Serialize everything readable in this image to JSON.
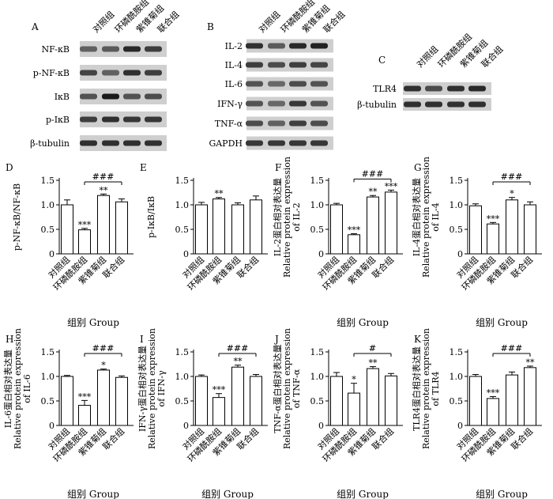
{
  "groups": [
    "对照组",
    "环磷酰胺组",
    "紫锥菊组",
    "联合组"
  ],
  "blots": [
    {
      "letter": "A",
      "rows": [
        "NF-κB",
        "p-NF-κB",
        "IκB",
        "p-IκB",
        "β-tubulin"
      ]
    },
    {
      "letter": "B",
      "rows": [
        "IL-2",
        "IL-4",
        "IL-6",
        "IFN-γ",
        "TNF-α",
        "GAPDH"
      ]
    },
    {
      "letter": "C",
      "rows": [
        "TLR4",
        "β-tubulin"
      ]
    }
  ],
  "chart_data": [
    {
      "letter": "D",
      "type": "bar",
      "ylabel": [
        "p-NF-κB/NF-κB"
      ],
      "xlabel": "组别  Group",
      "ylim": [
        0,
        1.5
      ],
      "yticks": [
        "0",
        "0.5",
        "1.0",
        "1.5"
      ],
      "values": [
        1.0,
        0.49,
        1.19,
        1.06
      ],
      "errors": [
        0.1,
        0.03,
        0.03,
        0.06
      ],
      "marks": [
        "",
        "***",
        "**",
        ""
      ],
      "bracket": {
        "from": 1,
        "to": 3,
        "label": "###"
      }
    },
    {
      "letter": "E",
      "type": "bar",
      "ylabel": [
        "p-IκB/IκB"
      ],
      "xlabel": "",
      "ylim": [
        0,
        1.5
      ],
      "yticks": [
        "0",
        "0.5",
        "1.0",
        "1.5"
      ],
      "values": [
        1.0,
        1.12,
        1.0,
        1.1
      ],
      "errors": [
        0.05,
        0.03,
        0.04,
        0.08
      ],
      "marks": [
        "",
        "**",
        "",
        ""
      ],
      "bracket": null
    },
    {
      "letter": "F",
      "type": "bar",
      "ylabel": [
        "IL-2蛋白相对表达量",
        "Relative protein expression",
        "of IL-2"
      ],
      "xlabel": "组别  Group",
      "ylim": [
        0,
        1.5
      ],
      "yticks": [
        "0",
        "0.5",
        "1.0",
        "1.5"
      ],
      "values": [
        1.0,
        0.39,
        1.16,
        1.26
      ],
      "errors": [
        0.03,
        0.02,
        0.03,
        0.04
      ],
      "marks": [
        "",
        "***",
        "**",
        "***"
      ],
      "bracket": {
        "from": 1,
        "to": 3,
        "label": "###"
      }
    },
    {
      "letter": "G",
      "type": "bar",
      "ylabel": [
        "IL-4蛋白相对表达量",
        "Relative protein expression",
        "of IL-4"
      ],
      "xlabel": "组别  Group",
      "ylim": [
        0,
        1.5
      ],
      "yticks": [
        "0",
        "0.5",
        "1.0",
        "1.5"
      ],
      "values": [
        0.98,
        0.61,
        1.1,
        1.0
      ],
      "errors": [
        0.04,
        0.03,
        0.05,
        0.06
      ],
      "marks": [
        "",
        "***",
        "*",
        ""
      ],
      "bracket": {
        "from": 1,
        "to": 3,
        "label": "###"
      }
    },
    {
      "letter": "H",
      "type": "bar",
      "ylabel": [
        "IL-6蛋白相对表达量",
        "Relative protein expression",
        "of IL-6"
      ],
      "xlabel": "组别  Group",
      "ylim": [
        0,
        1.5
      ],
      "yticks": [
        "0",
        "0.5",
        "1.0",
        "1.5"
      ],
      "values": [
        1.0,
        0.41,
        1.13,
        0.98
      ],
      "errors": [
        0.02,
        0.1,
        0.02,
        0.03
      ],
      "marks": [
        "",
        "***",
        "*",
        ""
      ],
      "bracket": {
        "from": 1,
        "to": 3,
        "label": "###"
      }
    },
    {
      "letter": "I",
      "type": "bar",
      "ylabel": [
        "IFN-γ蛋白相对表达量",
        "Relative protein expression",
        "of IFN-γ"
      ],
      "xlabel": "组别  Group",
      "ylim": [
        0,
        1.5
      ],
      "yticks": [
        "0",
        "0.5",
        "1.0",
        "1.5"
      ],
      "values": [
        1.0,
        0.57,
        1.19,
        1.0
      ],
      "errors": [
        0.03,
        0.08,
        0.04,
        0.04
      ],
      "marks": [
        "",
        "***",
        "**",
        ""
      ],
      "bracket": {
        "from": 1,
        "to": 3,
        "label": "###"
      }
    },
    {
      "letter": "J",
      "type": "bar",
      "ylabel": [
        "TNF-α蛋白相对表达量",
        "Relative protein expression",
        "of TNF-α"
      ],
      "xlabel": "组别  Group",
      "ylim": [
        0,
        1.5
      ],
      "yticks": [
        "0",
        "0.5",
        "1.0",
        "1.5"
      ],
      "values": [
        1.0,
        0.66,
        1.16,
        1.01
      ],
      "errors": [
        0.08,
        0.2,
        0.04,
        0.05
      ],
      "marks": [
        "",
        "*",
        "**",
        ""
      ],
      "bracket": {
        "from": 1,
        "to": 3,
        "label": "#"
      }
    },
    {
      "letter": "K",
      "type": "bar",
      "ylabel": [
        "TLR4蛋白相对表达量",
        "Relative protein expression",
        "of TLR4"
      ],
      "xlabel": "组别  Group",
      "ylim": [
        0,
        1.5
      ],
      "yticks": [
        "0",
        "0.5",
        "1.0",
        "1.5"
      ],
      "values": [
        1.0,
        0.55,
        1.03,
        1.18
      ],
      "errors": [
        0.04,
        0.04,
        0.06,
        0.03
      ],
      "marks": [
        "",
        "***",
        "",
        "**"
      ],
      "bracket": {
        "from": 1,
        "to": 3,
        "label": "###"
      }
    }
  ]
}
